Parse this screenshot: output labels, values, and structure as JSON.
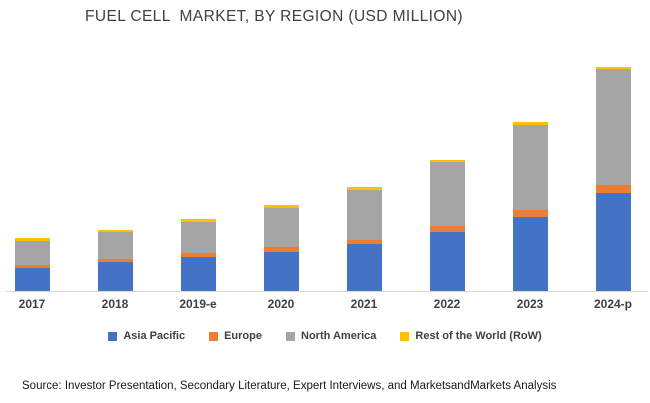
{
  "title": "FUEL CELL  MARKET, BY REGION (USD MILLION)",
  "source": "Source: Investor Presentation, Secondary Literature, Expert Interviews, and MarketsandMarkets Analysis",
  "colors": {
    "asia_pacific": "#4472C4",
    "europe": "#ED7D31",
    "north_america": "#A5A5A5",
    "rest_of_world": "#FFC000",
    "axis_line": "#D9D9D9",
    "text": "#404040"
  },
  "chart_data": {
    "type": "bar",
    "stacked": true,
    "title": "FUEL CELL MARKET, BY REGION (USD MILLION)",
    "units": "USD million",
    "values_estimated": true,
    "categories": [
      "2017",
      "2018",
      "2019-e",
      "2020",
      "2021",
      "2022",
      "2023",
      "2024-p"
    ],
    "series": [
      {
        "name": "Asia Pacific",
        "color": "#4472C4",
        "values": [
          230,
          290,
          345,
          395,
          475,
          590,
          740,
          985
        ]
      },
      {
        "name": "Europe",
        "color": "#ED7D31",
        "values": [
          30,
          35,
          35,
          50,
          40,
          60,
          75,
          75
        ]
      },
      {
        "name": "North America",
        "color": "#A5A5A5",
        "values": [
          240,
          265,
          315,
          390,
          500,
          640,
          850,
          1160
        ]
      },
      {
        "name": "Rest of the World (RoW)",
        "color": "#FFC000",
        "values": [
          30,
          25,
          25,
          25,
          25,
          25,
          25,
          25
        ]
      }
    ],
    "totals": [
      530,
      615,
      720,
      860,
      1040,
      1315,
      1690,
      2245
    ],
    "y_axis_visible": false,
    "gridlines": false,
    "legend_position": "bottom",
    "xlabel": "",
    "ylabel": "USD Million"
  }
}
